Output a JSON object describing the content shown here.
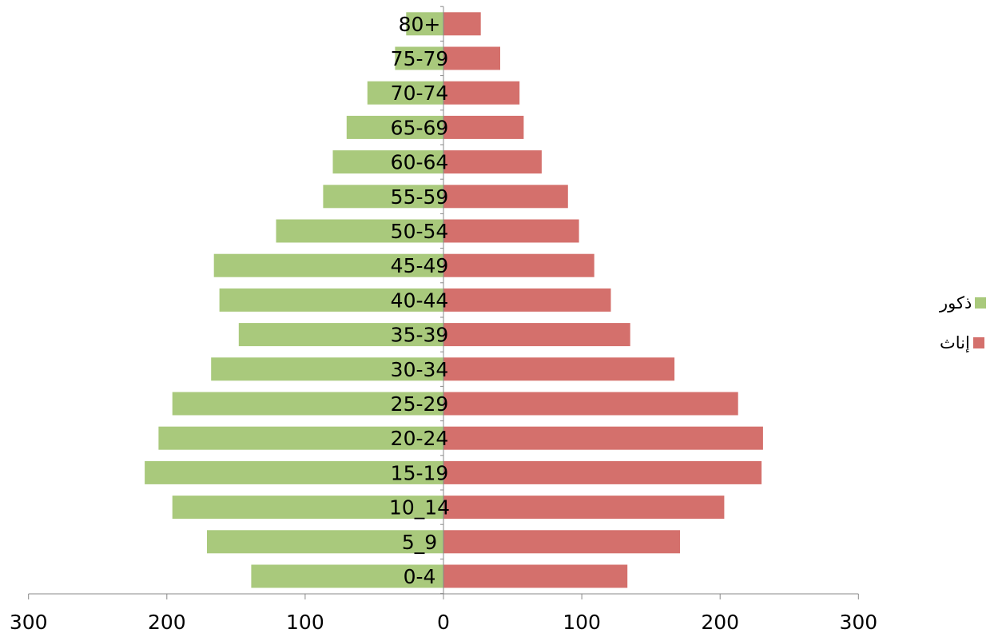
{
  "chart_data": {
    "type": "bar",
    "orientation": "horizontal",
    "layout": "population-pyramid",
    "categories": [
      "0-4",
      "5_9",
      "10_14",
      "15-19",
      "20-24",
      "25-29",
      "30-34",
      "35-39",
      "40-44",
      "45-49",
      "50-54",
      "55-59",
      "60-64",
      "65-69",
      "70-74",
      "75-79",
      "80+"
    ],
    "series": [
      {
        "name": "ذكور",
        "side": "left",
        "color": "#a9c97c",
        "values": [
          139,
          171,
          196,
          216,
          206,
          196,
          168,
          148,
          162,
          166,
          121,
          87,
          80,
          70,
          55,
          35,
          27
        ]
      },
      {
        "name": "إناث",
        "side": "right",
        "color": "#d4706c",
        "values": [
          133,
          171,
          203,
          230,
          231,
          213,
          167,
          135,
          121,
          109,
          98,
          90,
          71,
          58,
          55,
          41,
          27
        ]
      }
    ],
    "x_ticks": [
      "300",
      "200",
      "100",
      "0",
      "100",
      "200",
      "300"
    ],
    "xlim": [
      -300,
      300
    ],
    "grid": false,
    "legend_position": "right"
  }
}
